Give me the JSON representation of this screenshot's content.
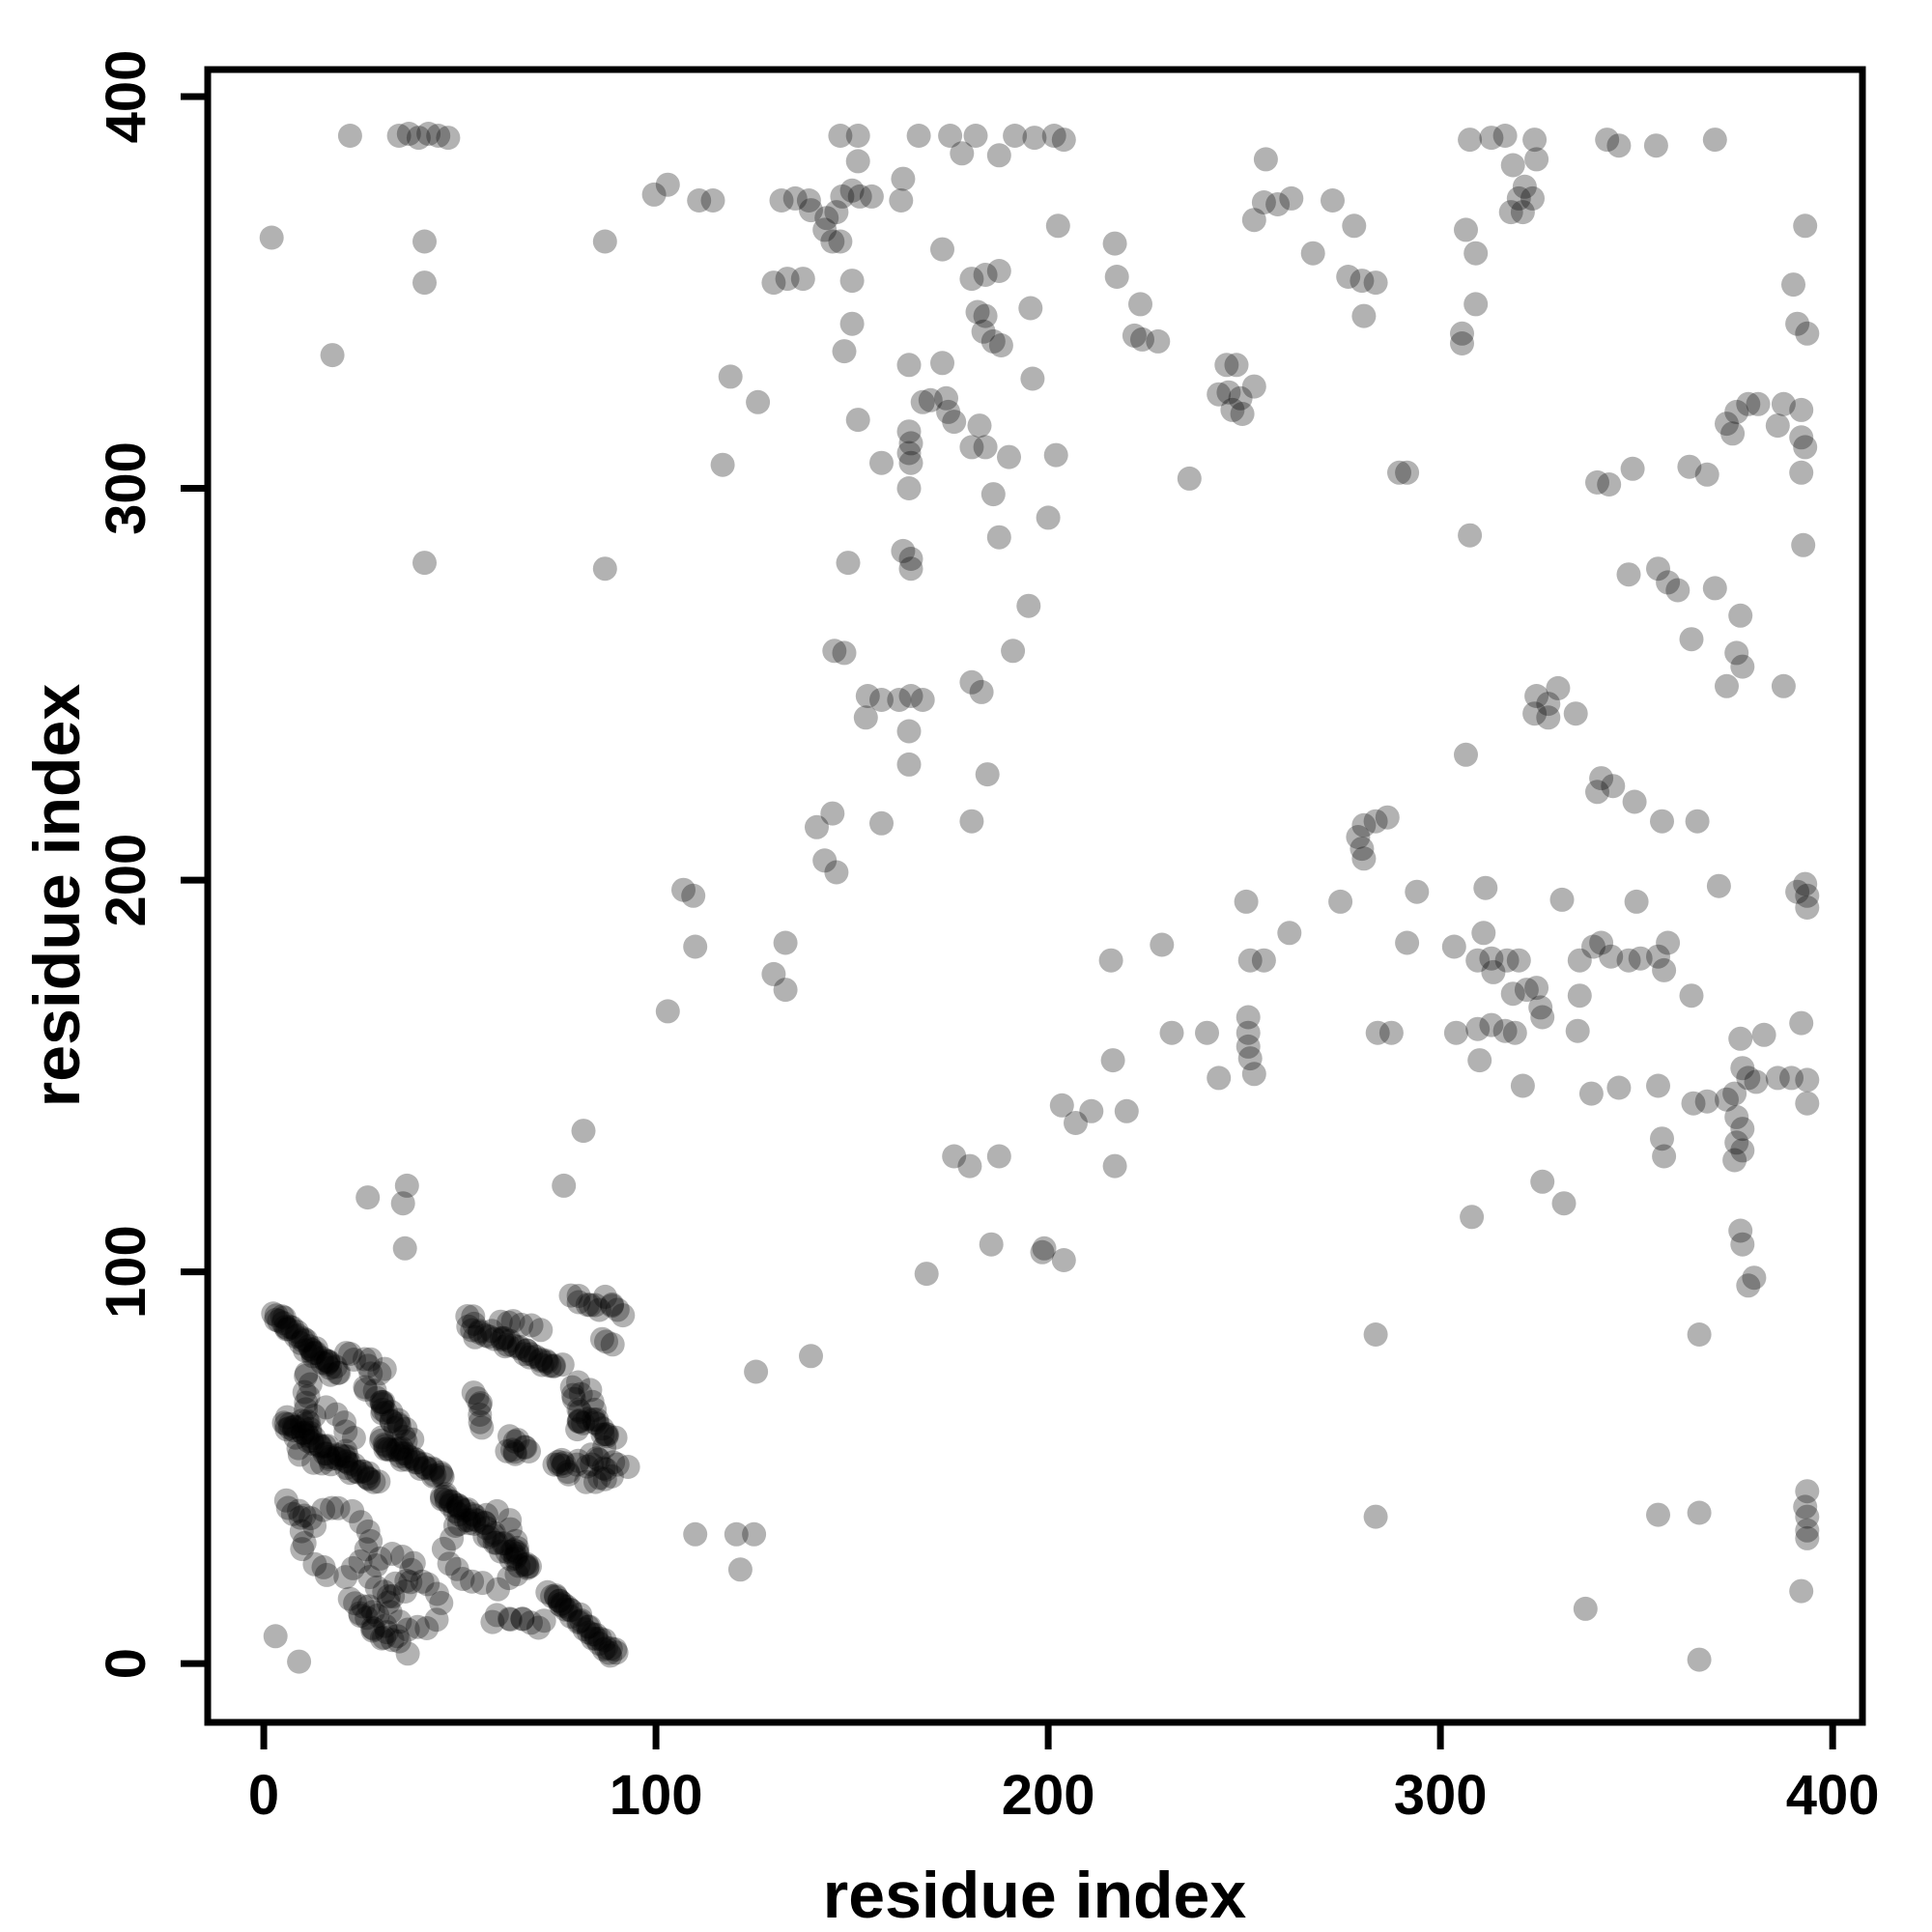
{
  "chart_data": {
    "type": "scatter",
    "title": "",
    "xlabel": "residue index",
    "ylabel": "residue index",
    "x_ticks": [
      0,
      100,
      200,
      300,
      400
    ],
    "y_ticks": [
      0,
      100,
      200,
      300,
      400
    ],
    "xlim": [
      -14.3,
      407.6
    ],
    "ylim": [
      -15.0,
      406.9
    ],
    "grid": false,
    "legend": "none",
    "axis_color": "#000000",
    "point_color": "#000000",
    "point_opacity": 0.3,
    "point_radius_px": 12.5,
    "jitter_seed": 42,
    "points": [
      [
        22,
        390
      ],
      [
        34.5,
        390
      ],
      [
        37,
        390.5
      ],
      [
        39.5,
        389.5
      ],
      [
        42,
        390.5
      ],
      [
        44.5,
        390
      ],
      [
        47,
        389.5
      ],
      [
        147,
        390
      ],
      [
        151.5,
        390
      ],
      [
        167,
        390
      ],
      [
        175,
        390
      ],
      [
        181.5,
        390
      ],
      [
        191.5,
        390
      ],
      [
        178,
        385.5
      ],
      [
        187.5,
        385
      ],
      [
        151.5,
        383.5
      ],
      [
        99.5,
        375
      ],
      [
        103,
        377.5
      ],
      [
        111,
        373.5
      ],
      [
        114.5,
        373.5
      ],
      [
        132,
        373.5
      ],
      [
        135.5,
        374
      ],
      [
        139,
        373.5
      ],
      [
        139.5,
        371
      ],
      [
        143.5,
        369
      ],
      [
        146,
        370.5
      ],
      [
        147.5,
        374.5
      ],
      [
        150,
        376
      ],
      [
        152,
        374.5
      ],
      [
        155,
        374.5
      ],
      [
        162.5,
        373.5
      ],
      [
        163,
        379
      ],
      [
        143,
        366
      ],
      [
        145,
        363
      ],
      [
        147,
        363
      ],
      [
        173,
        361
      ],
      [
        2,
        364
      ],
      [
        41,
        363
      ],
      [
        87,
        363
      ],
      [
        41,
        352.5
      ],
      [
        130,
        352.5
      ],
      [
        133.5,
        353.5
      ],
      [
        137.5,
        353.5
      ],
      [
        150,
        353
      ],
      [
        180.5,
        353.5
      ],
      [
        184,
        354.5
      ],
      [
        187.5,
        355.5
      ],
      [
        182,
        345
      ],
      [
        184,
        344
      ],
      [
        150,
        342
      ],
      [
        148,
        335
      ],
      [
        183.5,
        340
      ],
      [
        186,
        337.5
      ],
      [
        188,
        336.5
      ],
      [
        17.5,
        334
      ],
      [
        164.5,
        331.5
      ],
      [
        173,
        332
      ],
      [
        119,
        328.5
      ],
      [
        126,
        322
      ],
      [
        168,
        322
      ],
      [
        170,
        322.5
      ],
      [
        174,
        323
      ],
      [
        174.5,
        319.5
      ],
      [
        176,
        317
      ],
      [
        151.5,
        317.5
      ],
      [
        164.5,
        314.5
      ],
      [
        165,
        311.5
      ],
      [
        164.5,
        309
      ],
      [
        165,
        306.5
      ],
      [
        182.5,
        316
      ],
      [
        180.5,
        310.5
      ],
      [
        184,
        310.5
      ],
      [
        117,
        306
      ],
      [
        157.5,
        306.5
      ],
      [
        190,
        308
      ],
      [
        164.5,
        300
      ],
      [
        186,
        298.5
      ],
      [
        187.5,
        287.5
      ],
      [
        163,
        284
      ],
      [
        165,
        282
      ],
      [
        165,
        279.5
      ],
      [
        149,
        281
      ],
      [
        41,
        281
      ],
      [
        87,
        279.5
      ],
      [
        195,
        270
      ],
      [
        145.5,
        258.5
      ],
      [
        148,
        258
      ],
      [
        191,
        258.5
      ],
      [
        154,
        247
      ],
      [
        157.5,
        246
      ],
      [
        162,
        246
      ],
      [
        165,
        247
      ],
      [
        168,
        246
      ],
      [
        180.5,
        250.5
      ],
      [
        183,
        248
      ],
      [
        153.5,
        241.5
      ],
      [
        164.5,
        238
      ],
      [
        164.5,
        229.5
      ],
      [
        184.5,
        227
      ],
      [
        145,
        217
      ],
      [
        141,
        213.5
      ],
      [
        157.5,
        214.5
      ],
      [
        180.5,
        215
      ],
      [
        143,
        205
      ],
      [
        146,
        202
      ],
      [
        107,
        197.5
      ],
      [
        109.5,
        196
      ],
      [
        196.5,
        389.5
      ],
      [
        201.5,
        390
      ],
      [
        204,
        389
      ],
      [
        255.5,
        384
      ],
      [
        307.5,
        389
      ],
      [
        313,
        389.5
      ],
      [
        316.5,
        390
      ],
      [
        324,
        389
      ],
      [
        342.5,
        389
      ],
      [
        345.5,
        387.5
      ],
      [
        355,
        387.5
      ],
      [
        370,
        389
      ],
      [
        318.5,
        382.5
      ],
      [
        324.5,
        384
      ],
      [
        321.5,
        377
      ],
      [
        320,
        374
      ],
      [
        323.5,
        374
      ],
      [
        318,
        370.5
      ],
      [
        321,
        370.5
      ],
      [
        255,
        373
      ],
      [
        258.5,
        372.5
      ],
      [
        262,
        374
      ],
      [
        252.5,
        368.5
      ],
      [
        272.5,
        373.5
      ],
      [
        278,
        367
      ],
      [
        267.5,
        360
      ],
      [
        276.5,
        354
      ],
      [
        280,
        353
      ],
      [
        283.5,
        352.5
      ],
      [
        280.5,
        344
      ],
      [
        306.5,
        366
      ],
      [
        309,
        360
      ],
      [
        309,
        347
      ],
      [
        305.5,
        339.5
      ],
      [
        305.5,
        337
      ],
      [
        202.5,
        367
      ],
      [
        217,
        362.5
      ],
      [
        217.5,
        354
      ],
      [
        223.5,
        347
      ],
      [
        222,
        339
      ],
      [
        224,
        338
      ],
      [
        228,
        337.5
      ],
      [
        195.5,
        346
      ],
      [
        245.5,
        331.5
      ],
      [
        248,
        331.5
      ],
      [
        243.5,
        324
      ],
      [
        246,
        324.5
      ],
      [
        249,
        323
      ],
      [
        252.5,
        326
      ],
      [
        247,
        320
      ],
      [
        249.5,
        319
      ],
      [
        196,
        328
      ],
      [
        202,
        308.5
      ],
      [
        200,
        292.5
      ],
      [
        236,
        302.5
      ],
      [
        289.5,
        304
      ],
      [
        291.5,
        304
      ],
      [
        307.5,
        288
      ],
      [
        340,
        301.5
      ],
      [
        343,
        301
      ],
      [
        349,
        305
      ],
      [
        363.5,
        305.5
      ],
      [
        368,
        303.5
      ],
      [
        373,
        316.5
      ],
      [
        375.5,
        319.5
      ],
      [
        378.5,
        321.5
      ],
      [
        381,
        321.5
      ],
      [
        374.5,
        314
      ],
      [
        387.5,
        321.5
      ],
      [
        392,
        320
      ],
      [
        386,
        316
      ],
      [
        392,
        313
      ],
      [
        393,
        310.5
      ],
      [
        392,
        304
      ],
      [
        393,
        367
      ],
      [
        390,
        352
      ],
      [
        391,
        342
      ],
      [
        393.5,
        339.5
      ],
      [
        355.5,
        279.5
      ],
      [
        358,
        276
      ],
      [
        360.5,
        274
      ],
      [
        348,
        278
      ],
      [
        370,
        274.5
      ],
      [
        376.5,
        267.5
      ],
      [
        364,
        261.5
      ],
      [
        375.5,
        258
      ],
      [
        377,
        254.5
      ],
      [
        373,
        249.5
      ],
      [
        387.5,
        249.5
      ],
      [
        324.5,
        247
      ],
      [
        327.5,
        245
      ],
      [
        330,
        249
      ],
      [
        324,
        242.5
      ],
      [
        327.5,
        241.5
      ],
      [
        334.5,
        242.5
      ],
      [
        306.5,
        232
      ],
      [
        341,
        226
      ],
      [
        344,
        224
      ],
      [
        340,
        222.5
      ],
      [
        349.5,
        220
      ],
      [
        356.5,
        215
      ],
      [
        365.5,
        215
      ],
      [
        280.5,
        214
      ],
      [
        283.5,
        215
      ],
      [
        286.5,
        216
      ],
      [
        279,
        211
      ],
      [
        280,
        208
      ],
      [
        280.5,
        205.5
      ],
      [
        392.5,
        285.5
      ],
      [
        110,
        183
      ],
      [
        133,
        184
      ],
      [
        130,
        176
      ],
      [
        133,
        172
      ],
      [
        103,
        166.5
      ],
      [
        81.5,
        136
      ],
      [
        26.5,
        119
      ],
      [
        36.5,
        122
      ],
      [
        35.5,
        117.5
      ],
      [
        36,
        106
      ],
      [
        76.5,
        122
      ],
      [
        176,
        129.5
      ],
      [
        180,
        127
      ],
      [
        187.5,
        129.5
      ],
      [
        185.5,
        107
      ],
      [
        198.5,
        105
      ],
      [
        169,
        99.5
      ],
      [
        139.5,
        78.5
      ],
      [
        125.5,
        74.5
      ],
      [
        110,
        33
      ],
      [
        120.5,
        33
      ],
      [
        125,
        33
      ],
      [
        121.5,
        24
      ],
      [
        250.5,
        194.5
      ],
      [
        274.5,
        194.5
      ],
      [
        294,
        197
      ],
      [
        311.5,
        198
      ],
      [
        331,
        195
      ],
      [
        350,
        194.5
      ],
      [
        371,
        198.5
      ],
      [
        391,
        197
      ],
      [
        393,
        199
      ],
      [
        393.5,
        196
      ],
      [
        393.5,
        193
      ],
      [
        216,
        179.5
      ],
      [
        229,
        183.5
      ],
      [
        261.5,
        186.5
      ],
      [
        251.5,
        179.5
      ],
      [
        255,
        179.5
      ],
      [
        291.5,
        184
      ],
      [
        303.5,
        183
      ],
      [
        311,
        186.5
      ],
      [
        309.5,
        179.5
      ],
      [
        313,
        180
      ],
      [
        313.5,
        176.5
      ],
      [
        317,
        179.5
      ],
      [
        320,
        179.5
      ],
      [
        335.5,
        179.5
      ],
      [
        339,
        183
      ],
      [
        341,
        184
      ],
      [
        343.5,
        180.5
      ],
      [
        348,
        179.5
      ],
      [
        351,
        180
      ],
      [
        355.5,
        180.5
      ],
      [
        358,
        184
      ],
      [
        357,
        177
      ],
      [
        364,
        170.5
      ],
      [
        318.5,
        171
      ],
      [
        322,
        172
      ],
      [
        324.5,
        172.5
      ],
      [
        325.5,
        167.5
      ],
      [
        326,
        165
      ],
      [
        335.5,
        170.5
      ],
      [
        231.5,
        161
      ],
      [
        240.5,
        161
      ],
      [
        251,
        165
      ],
      [
        251,
        161
      ],
      [
        251,
        157.5
      ],
      [
        251.5,
        154.5
      ],
      [
        252.5,
        150.5
      ],
      [
        243.5,
        149.5
      ],
      [
        216.5,
        154
      ],
      [
        284,
        161
      ],
      [
        287.5,
        161
      ],
      [
        304,
        161
      ],
      [
        309.5,
        162
      ],
      [
        313,
        163
      ],
      [
        316.5,
        161.5
      ],
      [
        319,
        161
      ],
      [
        310,
        154
      ],
      [
        321,
        147.5
      ],
      [
        335,
        161.5
      ],
      [
        338.5,
        145.5
      ],
      [
        345.5,
        147
      ],
      [
        355.5,
        147.5
      ],
      [
        356.5,
        134
      ],
      [
        357,
        129.5
      ],
      [
        364.5,
        143
      ],
      [
        368,
        143.5
      ],
      [
        373,
        144
      ],
      [
        375,
        145.5
      ],
      [
        377,
        152
      ],
      [
        378.5,
        149.5
      ],
      [
        380.5,
        148.5
      ],
      [
        375.5,
        139.5
      ],
      [
        377,
        136.5
      ],
      [
        375.5,
        133
      ],
      [
        377,
        131
      ],
      [
        375,
        128.5
      ],
      [
        382.5,
        160.5
      ],
      [
        376.5,
        159.5
      ],
      [
        386,
        149.5
      ],
      [
        389.5,
        149.5
      ],
      [
        393.5,
        149
      ],
      [
        392,
        163.5
      ],
      [
        393.5,
        143
      ],
      [
        326,
        123
      ],
      [
        331.5,
        117.5
      ],
      [
        308,
        114
      ],
      [
        376.5,
        110.5
      ],
      [
        377,
        107
      ],
      [
        380,
        98.5
      ],
      [
        378.5,
        96.5
      ],
      [
        283.5,
        84
      ],
      [
        366,
        84
      ],
      [
        283.5,
        37.5
      ],
      [
        355.5,
        38
      ],
      [
        366,
        38.5
      ],
      [
        393.5,
        44
      ],
      [
        393,
        40
      ],
      [
        393.5,
        37.5
      ],
      [
        393.5,
        34
      ],
      [
        393.5,
        32
      ],
      [
        392,
        18.5
      ],
      [
        337,
        14
      ],
      [
        366,
        1
      ],
      [
        199,
        106
      ],
      [
        204,
        103
      ],
      [
        203.5,
        142.5
      ],
      [
        207,
        138
      ],
      [
        211,
        141
      ],
      [
        220,
        141
      ],
      [
        217,
        127
      ],
      [
        3,
        7
      ],
      [
        9,
        0.5
      ]
    ],
    "dense_segments": [
      [
        3,
        89,
        19,
        74,
        20,
        1.2,
        2
      ],
      [
        21.5,
        79,
        30,
        74,
        9,
        1.5,
        1
      ],
      [
        27,
        70,
        37,
        57.5,
        11,
        1.2,
        2
      ],
      [
        5,
        62,
        28,
        46.5,
        24,
        1.3,
        2
      ],
      [
        30,
        57,
        45,
        47.5,
        16,
        1.2,
        2
      ],
      [
        10.5,
        74,
        11.5,
        59,
        10,
        1.2,
        1
      ],
      [
        5.5,
        41,
        11.5,
        35,
        7,
        1.8,
        1
      ],
      [
        45.5,
        43,
        56,
        35,
        13,
        1.2,
        2
      ],
      [
        57,
        33.5,
        68,
        24,
        11,
        1.3,
        2
      ],
      [
        73.5,
        18,
        89.5,
        2,
        18,
        1.3,
        2
      ],
      [
        22,
        16,
        31,
        8.5,
        9,
        1.5,
        1
      ],
      [
        24,
        12,
        36,
        4,
        11,
        1.5,
        1
      ],
      [
        75.5,
        51,
        92,
        50.5,
        11,
        1.3,
        1
      ],
      [
        82,
        47,
        88.5,
        47,
        5,
        1,
        1
      ],
      [
        79.5,
        73,
        81,
        59.5,
        10,
        1.2,
        1
      ],
      [
        83,
        69,
        87,
        55,
        8,
        1.2,
        1
      ],
      [
        55.5,
        84.5,
        75,
        76,
        15,
        1.3,
        2
      ],
      [
        60,
        88,
        70,
        86,
        6,
        1,
        1
      ],
      [
        52.5,
        89,
        53,
        83.5,
        6,
        1,
        1
      ],
      [
        78.5,
        94.5,
        85.5,
        90,
        7,
        0.8,
        1
      ],
      [
        87,
        93,
        91.5,
        89,
        5,
        0.8,
        1
      ],
      [
        86.5,
        83,
        88.5,
        81,
        3,
        0.6,
        1
      ],
      [
        54,
        69,
        56.5,
        61,
        7,
        1,
        1
      ],
      [
        63,
        57.5,
        68,
        54,
        6,
        1,
        1
      ],
      [
        62.5,
        55,
        65,
        53,
        4,
        1,
        1
      ],
      [
        74,
        51.5,
        78.5,
        48.5,
        6,
        0.8,
        1
      ],
      [
        84,
        53.5,
        86,
        51.5,
        3,
        0.6,
        1
      ],
      [
        80,
        62.5,
        84.5,
        61.5,
        5,
        0.8,
        1
      ],
      [
        86,
        60,
        89,
        57,
        4,
        0.8,
        1
      ],
      [
        59,
        11.5,
        72,
        10,
        9,
        1.2,
        1
      ]
    ],
    "rings": [
      [
        15,
        57.5,
        7,
        16,
        1
      ],
      [
        18.5,
        31,
        8.5,
        18,
        1.2
      ],
      [
        33,
        23,
        5.5,
        12,
        1
      ],
      [
        38,
        15,
        6.5,
        14,
        1
      ],
      [
        56,
        29,
        9.5,
        20,
        1.2
      ]
    ]
  }
}
